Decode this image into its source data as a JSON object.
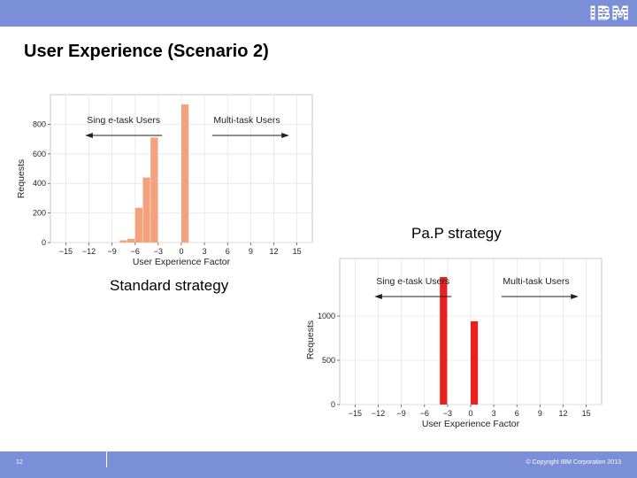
{
  "header": {
    "logo_text": "IBM",
    "bar_color": "#7b8fd9"
  },
  "slide": {
    "title": "User Experience (Scenario 2)",
    "caption_pap": "Pa.P strategy",
    "caption_standard": "Standard strategy"
  },
  "footer": {
    "page_number": "12",
    "copyright": "© Copyright IBM Corporation 2013"
  },
  "chart_data": [
    {
      "id": "standard",
      "type": "bar",
      "xlabel": "User Experience Factor",
      "ylabel": "Requests",
      "xlim": [
        -17,
        17
      ],
      "ylim": [
        0,
        1000
      ],
      "xticks": [
        -15,
        -12,
        -9,
        -6,
        -3,
        0,
        3,
        6,
        9,
        12,
        15
      ],
      "xtick_labels": [
        "−15",
        "−12",
        "−9",
        "−6",
        "−3",
        "0",
        "3",
        "6",
        "9",
        "12",
        "15"
      ],
      "yticks": [
        0,
        200,
        400,
        600,
        800
      ],
      "ytick_labels": [
        "0",
        "200",
        "400",
        "600",
        "800"
      ],
      "grid": true,
      "bar_color": "#f4a17e",
      "bars": [
        {
          "x": -7,
          "value": 15
        },
        {
          "x": -6,
          "value": 25
        },
        {
          "x": -5,
          "value": 235
        },
        {
          "x": -4,
          "value": 440
        },
        {
          "x": -3,
          "value": 710
        },
        {
          "x": 1,
          "value": 935
        }
      ],
      "annotations": [
        {
          "text": "Sing e-task Users",
          "direction": "left"
        },
        {
          "text": "Multi-task Users",
          "direction": "right"
        }
      ]
    },
    {
      "id": "pap",
      "type": "bar",
      "xlabel": "User Experience Factor",
      "ylabel": "Requests",
      "xlim": [
        -17,
        17
      ],
      "ylim": [
        0,
        1650
      ],
      "xticks": [
        -15,
        -12,
        -9,
        -6,
        -3,
        0,
        3,
        6,
        9,
        12,
        15
      ],
      "xtick_labels": [
        "−15",
        "−12",
        "−9",
        "−6",
        "−3",
        "0",
        "3",
        "6",
        "9",
        "12",
        "15"
      ],
      "yticks": [
        0,
        500,
        1000
      ],
      "ytick_labels": [
        "0",
        "500",
        "1000"
      ],
      "grid": true,
      "bar_color": "#e8211c",
      "bars": [
        {
          "x": -3,
          "value": 1440
        },
        {
          "x": 1,
          "value": 940
        }
      ],
      "annotations": [
        {
          "text": "Sing e-task Users",
          "direction": "left"
        },
        {
          "text": "Multi-task Users",
          "direction": "right"
        }
      ]
    }
  ]
}
